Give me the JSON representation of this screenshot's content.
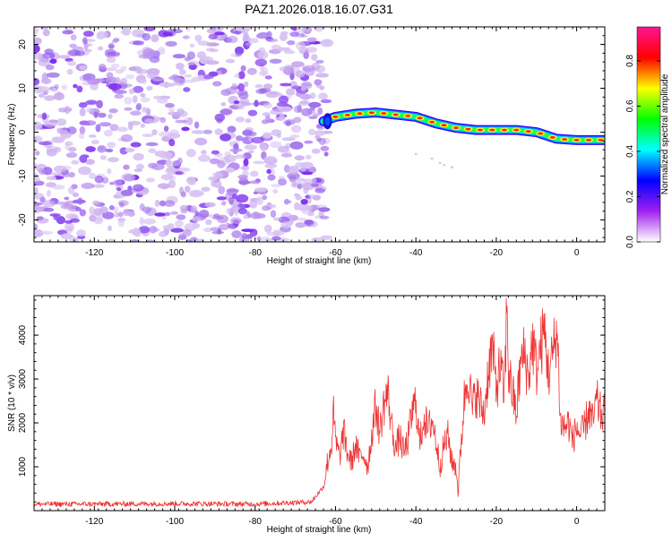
{
  "figure": {
    "title": "PAZ1.2026.018.16.07.G31"
  },
  "chart_data": [
    {
      "type": "heatmap",
      "name": "spectrogram",
      "title": "PAZ1.2026.018.16.07.G31",
      "xlabel": "Height of straight line (km)",
      "ylabel": "Frequency (Hz)",
      "xlim": [
        -135,
        7
      ],
      "ylim": [
        -25,
        24
      ],
      "xticks": [
        -120,
        -100,
        -80,
        -60,
        -40,
        -20,
        0
      ],
      "yticks": [
        -20,
        -10,
        0,
        10,
        20
      ],
      "noise_region": {
        "x_range": [
          -135,
          -63
        ],
        "description": "scattered low-amplitude noise across all frequencies"
      },
      "signal_track": {
        "x": [
          -63,
          -60,
          -55,
          -50,
          -45,
          -40,
          -35,
          -30,
          -25,
          -20,
          -15,
          -10,
          -5,
          0,
          7
        ],
        "y": [
          2.5,
          3.5,
          4.2,
          4.5,
          4.0,
          3.5,
          2.0,
          1.0,
          0.5,
          0.5,
          0.5,
          0.0,
          -1.5,
          -1.8,
          -1.8
        ]
      },
      "colorbar": {
        "label": "Normalized spectral amplitude",
        "range": [
          0.0,
          0.95
        ],
        "ticks": [
          "0.0",
          "0.2",
          "0.4",
          "0.6",
          "0.8"
        ],
        "tick_values": [
          0.0,
          0.2,
          0.4,
          0.6,
          0.8
        ],
        "colors": [
          "#ffffff",
          "#a020f0",
          "#0000ff",
          "#00ffff",
          "#00ff00",
          "#ffff00",
          "#ff0000",
          "#ff1493"
        ]
      }
    },
    {
      "type": "line",
      "name": "snr",
      "title": "",
      "xlabel": "Height of straight line (km)",
      "ylabel": "SNR (10 * v/v)",
      "xlim": [
        -135,
        7
      ],
      "ylim": [
        0,
        4900
      ],
      "xticks": [
        -120,
        -100,
        -80,
        -60,
        -40,
        -20,
        0
      ],
      "yticks": [
        1000,
        2000,
        3000,
        4000
      ],
      "color": "#ee3333",
      "x": [
        -135,
        -120,
        -100,
        -80,
        -66,
        -63,
        -62,
        -61,
        -60.5,
        -60,
        -59,
        -58,
        -57,
        -56,
        -55,
        -54,
        -53,
        -52,
        -51,
        -50,
        -49,
        -48,
        -47,
        -46,
        -45,
        -44,
        -43,
        -42,
        -41,
        -40,
        -39,
        -38,
        -37,
        -36,
        -35,
        -34,
        -33,
        -32,
        -31,
        -30,
        -29.5,
        -29,
        -28,
        -27,
        -26,
        -25,
        -24,
        -23,
        -22,
        -21,
        -20,
        -19,
        -18,
        -17.3,
        -17,
        -16,
        -15,
        -14,
        -13,
        -12,
        -11,
        -10,
        -9,
        -8,
        -7,
        -6,
        -5,
        -4.5,
        -4,
        -3,
        -2,
        -1,
        0,
        1,
        2,
        3,
        4,
        5,
        6,
        7
      ],
      "y": [
        150,
        150,
        160,
        150,
        200,
        550,
        1100,
        1500,
        2200,
        1600,
        1200,
        1800,
        1300,
        1100,
        1500,
        1200,
        1300,
        1000,
        1700,
        2400,
        1800,
        2400,
        2700,
        1900,
        1400,
        1700,
        1300,
        1600,
        2200,
        2500,
        1500,
        2200,
        1800,
        2100,
        1600,
        1000,
        1500,
        1700,
        1100,
        1000,
        400,
        1200,
        2500,
        3200,
        2300,
        2700,
        2400,
        2200,
        3200,
        3700,
        2800,
        3300,
        2600,
        4900,
        3200,
        2700,
        2200,
        3300,
        3600,
        3000,
        3900,
        3200,
        3700,
        4100,
        3100,
        3500,
        4150,
        3300,
        2000,
        1900,
        2000,
        1600,
        1900,
        1700,
        1900,
        2300,
        2000,
        2500,
        2200,
        2200
      ]
    }
  ]
}
